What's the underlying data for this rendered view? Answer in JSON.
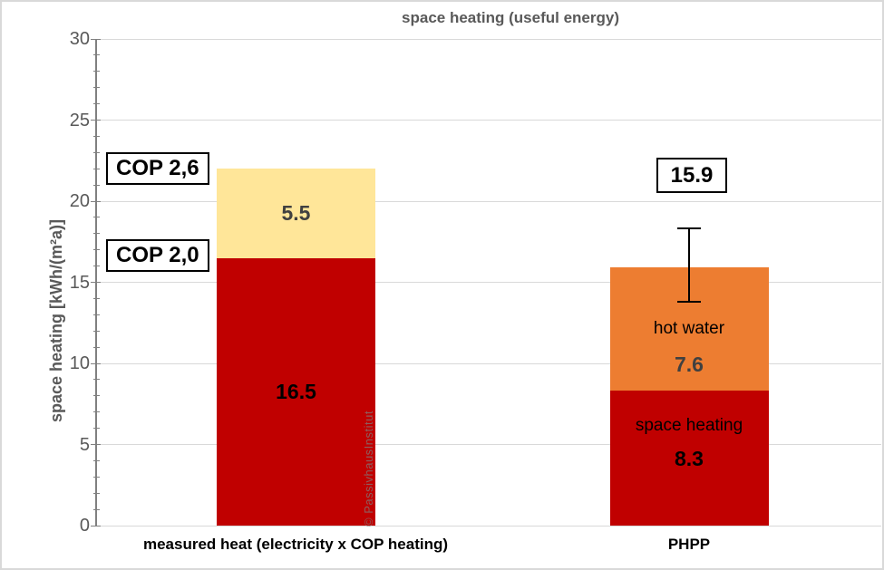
{
  "chart_data": {
    "type": "bar",
    "stacked": true,
    "title": "space heating (useful energy)",
    "ylabel": "space heating [kWh/(m²a)]",
    "ylim": [
      0,
      30
    ],
    "yticks": [
      0,
      5,
      10,
      15,
      20,
      25,
      30
    ],
    "minor_tick_step": 1,
    "grid": "horizontal-major",
    "legend": "none",
    "categories": [
      "measured heat (electricity x COP heating)",
      "PHPP"
    ],
    "annotations": {
      "cop_2_6": "COP 2,6",
      "cop_2_0": "COP 2,0"
    },
    "bars": [
      {
        "category": "measured heat (electricity x COP heating)",
        "total": 22.0,
        "segments": [
          {
            "name": "",
            "value": 16.5,
            "value_label": "16.5",
            "color": "#C00000",
            "value_color": "#000000"
          },
          {
            "name": "",
            "value": 5.5,
            "value_label": "5.5",
            "color": "#FFE699",
            "value_color": "#404040"
          }
        ]
      },
      {
        "category": "PHPP",
        "total": 15.9,
        "total_label": "15.9",
        "error_bar": {
          "high": 18.3,
          "low": 13.8
        },
        "segments": [
          {
            "name": "space heating",
            "value": 8.3,
            "value_label": "8.3",
            "color": "#C00000",
            "value_color": "#000000",
            "name_color": "#000000"
          },
          {
            "name": "hot water",
            "value": 7.6,
            "value_label": "7.6",
            "color": "#ED7D31",
            "value_color": "#404040",
            "name_color": "#000000"
          }
        ]
      }
    ],
    "watermark": "© PassivhausInstitut",
    "colors": {
      "grid": "#D9D9D9",
      "axis": "#808080",
      "axis_text": "#595959",
      "red": "#C00000",
      "yellow": "#FFE699",
      "orange": "#ED7D31"
    }
  }
}
